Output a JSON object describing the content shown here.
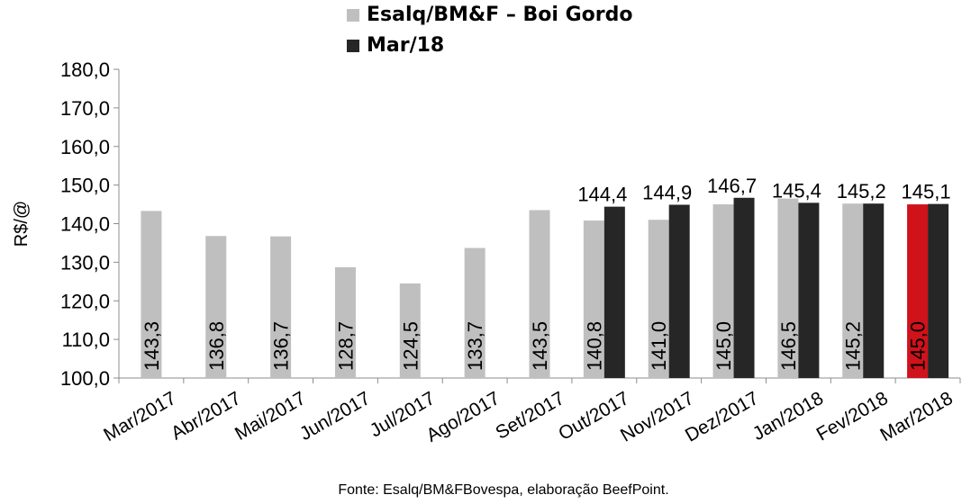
{
  "chart_data": {
    "type": "bar",
    "categories": [
      "Mar/2017",
      "Abr/2017",
      "Mai/2017",
      "Jun/2017",
      "Jul/2017",
      "Ago/2017",
      "Set/2017",
      "Out/2017",
      "Nov/2017",
      "Dez/2017",
      "Jan/2018",
      "Fev/2018",
      "Mar/2018"
    ],
    "series": [
      {
        "name": "Esalq/BM&F – Boi Gordo",
        "values": [
          143.3,
          136.8,
          136.7,
          128.7,
          124.5,
          133.7,
          143.5,
          140.8,
          141.0,
          145.0,
          146.5,
          145.2,
          145.0
        ],
        "color": "#bfbfbf"
      },
      {
        "name": "Mar/18",
        "values": [
          null,
          null,
          null,
          null,
          null,
          null,
          null,
          144.4,
          144.9,
          146.7,
          145.4,
          145.2,
          145.1
        ],
        "color": "#262626"
      }
    ],
    "highlight": {
      "category": "Mar/2018",
      "series": 0,
      "color": "#d0121b"
    },
    "value_labels": {
      "series0": [
        "143,3",
        "136,8",
        "136,7",
        "128,7",
        "124,5",
        "133,7",
        "143,5",
        "140,8",
        "141,0",
        "145,0",
        "146,5",
        "145,2",
        "145,0"
      ],
      "series1": [
        null,
        null,
        null,
        null,
        null,
        null,
        null,
        "144,4",
        "144,9",
        "146,7",
        "145,4",
        "145,2",
        "145,1"
      ]
    },
    "ylabel": "R$/@",
    "xlabel": "",
    "ylim": [
      100,
      180
    ],
    "yticks": [
      "100,0",
      "110,0",
      "120,0",
      "130,0",
      "140,0",
      "150,0",
      "160,0",
      "170,0",
      "180,0"
    ],
    "grid": false,
    "legend_position": "top"
  },
  "source_note": "Fonte: Esalq/BM&FBovespa, elaboração BeefPoint."
}
